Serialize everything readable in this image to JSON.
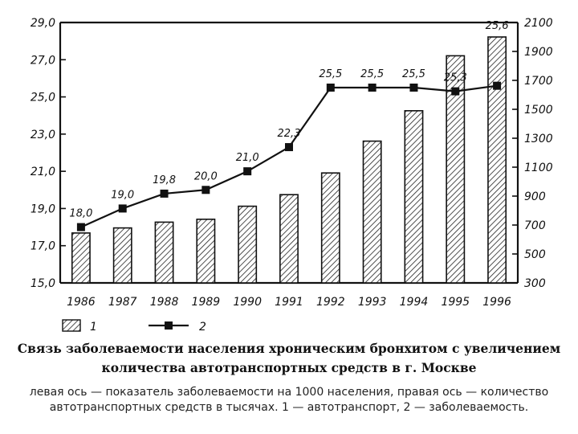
{
  "chart_data": {
    "type": "bar",
    "categories": [
      "1986",
      "1987",
      "1988",
      "1989",
      "1990",
      "1991",
      "1992",
      "1993",
      "1994",
      "1995",
      "1996"
    ],
    "series": [
      {
        "name": "1",
        "type": "bar",
        "axis": "right",
        "values": [
          645,
          680,
          720,
          740,
          830,
          910,
          1060,
          1280,
          1490,
          1870,
          2000
        ]
      },
      {
        "name": "2",
        "type": "line",
        "axis": "left",
        "values": [
          18.0,
          19.0,
          19.8,
          20.0,
          21.0,
          22.3,
          25.5,
          25.5,
          25.5,
          25.3,
          25.6
        ],
        "labels": [
          "18,0",
          "19,0",
          "19,8",
          "20,0",
          "21,0",
          "22,3",
          "25,5",
          "25,5",
          "25,5",
          "25,3",
          "25,6"
        ]
      }
    ],
    "y_left": {
      "range": [
        15,
        29
      ],
      "ticks": [
        15,
        17,
        19,
        21,
        23,
        25,
        27,
        29
      ],
      "tick_labels": [
        "15,0",
        "17,0",
        "19,0",
        "21,0",
        "23,0",
        "25,0",
        "27,0",
        "29,0"
      ]
    },
    "y_right": {
      "range": [
        300,
        2100
      ],
      "ticks": [
        300,
        500,
        700,
        900,
        1100,
        1300,
        1500,
        1700,
        1900,
        2100
      ],
      "tick_labels": [
        "300",
        "500",
        "700",
        "900",
        "1100",
        "1300",
        "1500",
        "1700",
        "1900",
        "2100"
      ]
    },
    "legend": {
      "placement": "bottom-left",
      "labels": [
        "1",
        "2"
      ]
    },
    "grid": false
  },
  "caption": {
    "line1": "Связь заболеваемости населения хроническим бронхитом с увеличением",
    "line2": "количества автотранспортных средств в г. Москве"
  },
  "note": "левая ось — показатель заболеваемости на 1000 населения, правая ось — количество автотранспортных средств в тысячах. 1 — автотранспорт, 2 — заболеваемость."
}
